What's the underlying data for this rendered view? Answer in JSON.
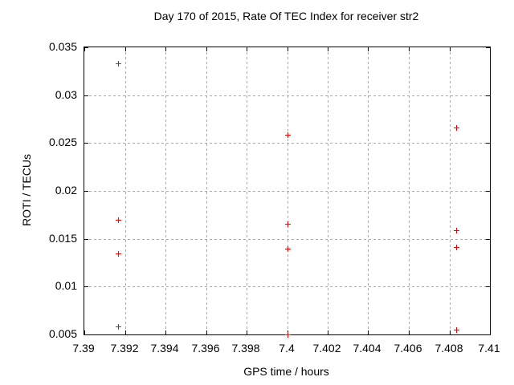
{
  "chart_data": {
    "type": "scatter",
    "title": "Day 170 of 2015, Rate Of TEC Index for receiver str2",
    "xlabel": "GPS time / hours",
    "ylabel": "ROTI / TECUs",
    "xlim": [
      7.39,
      7.41
    ],
    "ylim": [
      0.005,
      0.035
    ],
    "grid": true,
    "legend_position": "none",
    "marker": "plus",
    "colors": {
      "marker": "#ff0000",
      "grid": "#a8a8a8",
      "axis": "#000000",
      "background": "#ffffff",
      "text": "#000000"
    },
    "xticks": [
      {
        "value": 7.39,
        "label": "7.39"
      },
      {
        "value": 7.392,
        "label": "7.392"
      },
      {
        "value": 7.394,
        "label": "7.394"
      },
      {
        "value": 7.396,
        "label": "7.396"
      },
      {
        "value": 7.398,
        "label": "7.398"
      },
      {
        "value": 7.4,
        "label": "7.4"
      },
      {
        "value": 7.402,
        "label": "7.402"
      },
      {
        "value": 7.404,
        "label": "7.404"
      },
      {
        "value": 7.406,
        "label": "7.406"
      },
      {
        "value": 7.408,
        "label": "7.408"
      },
      {
        "value": 7.41,
        "label": "7.41"
      }
    ],
    "yticks": [
      {
        "value": 0.005,
        "label": "0.005"
      },
      {
        "value": 0.01,
        "label": "0.01"
      },
      {
        "value": 0.015,
        "label": "0.015"
      },
      {
        "value": 0.02,
        "label": "0.02"
      },
      {
        "value": 0.025,
        "label": "0.025"
      },
      {
        "value": 0.03,
        "label": "0.03"
      },
      {
        "value": 0.035,
        "label": "0.035"
      }
    ],
    "series": [
      {
        "name": "ROTI",
        "points": [
          {
            "x": 7.39167,
            "y": 0.0333
          },
          {
            "x": 7.39167,
            "y": 0.017
          },
          {
            "x": 7.39167,
            "y": 0.0135
          },
          {
            "x": 7.39167,
            "y": 0.0058
          },
          {
            "x": 7.4,
            "y": 0.0259
          },
          {
            "x": 7.4,
            "y": 0.0166
          },
          {
            "x": 7.4,
            "y": 0.014
          },
          {
            "x": 7.4,
            "y": 0.005
          },
          {
            "x": 7.40833,
            "y": 0.0266
          },
          {
            "x": 7.40833,
            "y": 0.0159
          },
          {
            "x": 7.40833,
            "y": 0.0141
          },
          {
            "x": 7.40833,
            "y": 0.0055
          }
        ]
      }
    ]
  }
}
